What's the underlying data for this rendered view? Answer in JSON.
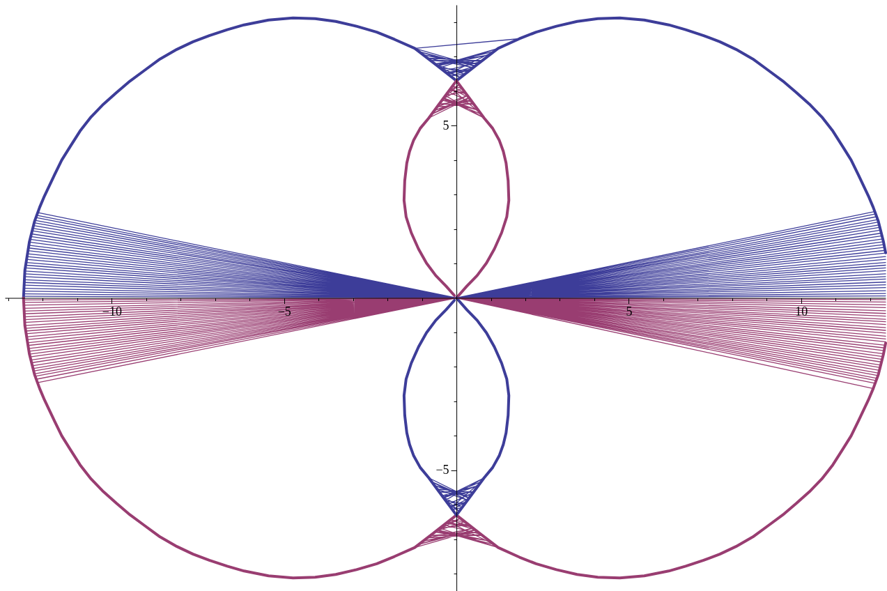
{
  "chart_data": {
    "type": "line",
    "xlim": [
      -13.1,
      12.45
    ],
    "ylim": [
      -8.5,
      8.5
    ],
    "xticks": [
      {
        "value": -13,
        "label": null
      },
      {
        "value": -12,
        "label": null
      },
      {
        "value": -11,
        "label": null
      },
      {
        "value": -10,
        "label": "−10"
      },
      {
        "value": -9,
        "label": null
      },
      {
        "value": -8,
        "label": null
      },
      {
        "value": -7,
        "label": null
      },
      {
        "value": -6,
        "label": null
      },
      {
        "value": -5,
        "label": "−5"
      },
      {
        "value": -4,
        "label": null
      },
      {
        "value": -3,
        "label": null
      },
      {
        "value": -2,
        "label": null
      },
      {
        "value": -1,
        "label": null
      },
      {
        "value": 1,
        "label": null
      },
      {
        "value": 2,
        "label": null
      },
      {
        "value": 3,
        "label": null
      },
      {
        "value": 4,
        "label": null
      },
      5,
      {
        "value": 6,
        "label": null
      },
      {
        "value": 7,
        "label": null
      },
      {
        "value": 8,
        "label": null
      },
      {
        "value": 9,
        "label": null
      },
      10,
      {
        "value": 11,
        "label": null
      },
      {
        "value": 12,
        "label": null
      }
    ],
    "yticks": [
      {
        "value": -8,
        "label": null
      },
      {
        "value": -7,
        "label": null
      },
      {
        "value": -6,
        "label": null
      },
      {
        "value": -5,
        "label": "−5"
      },
      {
        "value": -4,
        "label": null
      },
      {
        "value": -3,
        "label": null
      },
      {
        "value": -2,
        "label": null
      },
      {
        "value": -1,
        "label": null
      },
      {
        "value": 1,
        "label": null
      },
      {
        "value": 2,
        "label": null
      },
      {
        "value": 3,
        "label": null
      },
      {
        "value": 4,
        "label": null
      },
      5,
      {
        "value": 6,
        "label": null
      },
      {
        "value": 7,
        "label": null
      },
      {
        "value": 8,
        "label": null
      }
    ],
    "series": [
      {
        "color": "#3d3d99",
        "x": [
          -12.56,
          -12.52,
          -12.39,
          -12.24,
          -12.09,
          -11.95,
          -11.66,
          -11.45,
          -11.2,
          -10.92,
          -10.6,
          -10.24,
          -9.86,
          -9.47,
          -9.05,
          -8.6,
          -8.11,
          -7.64,
          -7.17,
          -6.65,
          -6.16,
          -5.45,
          -4.74,
          -4.1,
          -3.5,
          -2.9,
          -2.31,
          -1.8,
          -1.21,
          -0.6,
          0,
          0.6,
          1.21,
          1.83,
          2.31,
          2.9,
          3.5,
          4.1,
          4.74,
          5.45,
          6.16,
          6.65,
          7.17,
          7.64,
          8.11,
          8.6,
          9.05,
          9.47,
          9.86,
          10.24,
          10.6,
          10.92,
          11.2,
          11.45,
          11.66,
          11.95,
          12.09,
          12.24,
          12.39,
          12.45
        ],
        "values": [
          0,
          0.8,
          1.62,
          2.22,
          2.63,
          2.96,
          3.57,
          4.0,
          4.4,
          4.84,
          5.25,
          5.62,
          5.96,
          6.29,
          6.6,
          6.93,
          7.21,
          7.43,
          7.61,
          7.78,
          7.92,
          8.06,
          8.12,
          8.1,
          8.02,
          7.88,
          7.71,
          7.5,
          7.24,
          6.77,
          6.3,
          6.77,
          7.24,
          7.52,
          7.71,
          7.88,
          8.02,
          8.1,
          8.12,
          8.06,
          7.92,
          7.78,
          7.61,
          7.43,
          7.21,
          6.93,
          6.6,
          6.29,
          5.96,
          5.62,
          5.25,
          4.84,
          4.4,
          4.0,
          3.57,
          2.96,
          2.63,
          2.22,
          1.62,
          1.31
        ]
      },
      {
        "color": "#993d71",
        "x": [
          -12.56,
          -12.52,
          -12.39,
          -12.24,
          -12.09,
          -11.95,
          -11.66,
          -11.45,
          -11.2,
          -10.92,
          -10.6,
          -10.24,
          -9.86,
          -9.47,
          -9.05,
          -8.6,
          -8.11,
          -7.64,
          -7.17,
          -6.65,
          -6.16,
          -5.45,
          -4.74,
          -4.1,
          -3.5,
          -2.9,
          -2.31,
          -1.8,
          -1.21,
          -0.6,
          0,
          0.6,
          1.21,
          1.83,
          2.31,
          2.9,
          3.5,
          4.1,
          4.74,
          5.45,
          6.16,
          6.65,
          7.17,
          7.64,
          8.11,
          8.6,
          9.05,
          9.47,
          9.86,
          10.24,
          10.6,
          10.92,
          11.2,
          11.45,
          11.66,
          11.95,
          12.09,
          12.24,
          12.39,
          12.45
        ],
        "values": [
          0,
          -0.8,
          -1.62,
          -2.22,
          -2.63,
          -2.96,
          -3.57,
          -4.0,
          -4.4,
          -4.84,
          -5.25,
          -5.62,
          -5.96,
          -6.29,
          -6.6,
          -6.93,
          -7.21,
          -7.43,
          -7.61,
          -7.78,
          -7.92,
          -8.06,
          -8.12,
          -8.1,
          -8.02,
          -7.88,
          -7.71,
          -7.5,
          -7.24,
          -6.77,
          -6.3,
          -6.77,
          -7.24,
          -7.52,
          -7.71,
          -7.88,
          -8.02,
          -8.1,
          -8.12,
          -8.06,
          -7.92,
          -7.78,
          -7.61,
          -7.43,
          -7.21,
          -6.93,
          -6.6,
          -6.29,
          -5.96,
          -5.62,
          -5.25,
          -4.84,
          -4.4,
          -4.0,
          -3.57,
          -2.96,
          -2.63,
          -2.22,
          -1.62,
          -1.31
        ]
      },
      {
        "color": "#3d3d99",
        "x": [
          1.83,
          -1.21,
          0.56,
          -0.97,
          0.63,
          -0.76,
          0.76,
          -0.63,
          0.97,
          -0.56,
          1.21,
          -0.48,
          0.36,
          -0.3,
          0.42,
          -0.18,
          0.24,
          -0.61,
          0.12,
          -0.36,
          0.73,
          -0.85,
          0.48,
          -1.09,
          0.54,
          -0.24,
          1.09,
          -0.58
        ],
        "values": [
          7.52,
          7.24,
          6.73,
          7.05,
          6.79,
          6.89,
          6.89,
          6.79,
          7.05,
          6.73,
          7.24,
          6.68,
          6.58,
          6.54,
          6.63,
          6.44,
          6.49,
          6.77,
          6.39,
          6.58,
          6.86,
          6.96,
          6.68,
          7.15,
          6.72,
          6.49,
          7.15,
          6.75
        ]
      },
      {
        "color": "#993d71",
        "x": [
          -1.21,
          0.56,
          -0.97,
          0.63,
          -0.76,
          0.76,
          -0.63,
          0.97,
          -0.56,
          1.21,
          -0.48,
          0.36,
          -0.3,
          0.42,
          -0.18,
          0.24,
          -0.61,
          0.12,
          -0.36,
          0.73,
          -0.85,
          0.48,
          -1.09,
          0.54,
          -0.24,
          1.09,
          -0.58
        ],
        "values": [
          -7.24,
          -6.73,
          -7.05,
          -6.79,
          -6.89,
          -6.89,
          -6.79,
          -7.05,
          -6.73,
          -7.24,
          -6.68,
          -6.58,
          -6.54,
          -6.63,
          -6.44,
          -6.49,
          -6.77,
          -6.39,
          -6.58,
          -6.86,
          -6.96,
          -6.68,
          -7.15,
          -6.72,
          -6.49,
          -7.15,
          -6.75
        ]
      },
      {
        "color": "#993d71",
        "x": [
          -0.8,
          0.37,
          -0.64,
          0.42,
          -0.5,
          0.5,
          -0.42,
          0.64,
          -0.37,
          0.8,
          -0.32,
          0.24,
          -0.2,
          0.28,
          -0.12,
          0.16,
          -0.4,
          0.08,
          -0.24,
          0.48,
          -0.56,
          0.32,
          -0.72,
          0.36,
          -0.16,
          0.72,
          -0.38
        ],
        "values": [
          5.22,
          5.8,
          5.44,
          5.74,
          5.62,
          5.62,
          5.74,
          5.44,
          5.8,
          5.22,
          5.87,
          5.98,
          6.03,
          5.92,
          6.14,
          6.08,
          5.76,
          6.19,
          5.98,
          5.65,
          5.54,
          5.87,
          5.33,
          5.81,
          6.08,
          5.33,
          5.78
        ]
      },
      {
        "color": "#3d3d99",
        "x": [
          -0.8,
          0.37,
          -0.64,
          0.42,
          -0.5,
          0.5,
          -0.42,
          0.64,
          -0.37,
          0.8,
          -0.32,
          0.24,
          -0.2,
          0.28,
          -0.12,
          0.16,
          -0.4,
          0.08,
          -0.24,
          0.48,
          -0.56,
          0.32,
          -0.72,
          0.36,
          -0.16,
          0.72,
          -0.38
        ],
        "values": [
          -5.22,
          -5.8,
          -5.44,
          -5.74,
          -5.62,
          -5.62,
          -5.74,
          -5.44,
          -5.8,
          -5.22,
          -5.87,
          -5.98,
          -6.03,
          -5.92,
          -6.14,
          -6.08,
          -5.76,
          -6.19,
          -5.98,
          -5.65,
          -5.54,
          -5.87,
          -5.33,
          -5.81,
          -6.08,
          -5.33,
          -5.78
        ]
      },
      {
        "color": "#993d71",
        "x": [
          0,
          0.3,
          0.6,
          0.87,
          1.1,
          1.31,
          1.46,
          1.52,
          1.5,
          1.44,
          1.36,
          1.24,
          1.05,
          0.8,
          0.4,
          0,
          -0.4,
          -0.8,
          -1.05,
          -1.24,
          -1.36,
          -1.44,
          -1.5,
          -1.52,
          -1.46,
          -1.31,
          -1.1,
          -0.87,
          -0.6,
          -0.3,
          -0.06
        ],
        "values": [
          0,
          0.34,
          0.65,
          1.01,
          1.42,
          1.89,
          2.35,
          2.83,
          3.4,
          3.91,
          4.25,
          4.58,
          4.92,
          5.22,
          5.76,
          6.3,
          5.76,
          5.22,
          4.92,
          4.58,
          4.25,
          3.91,
          3.4,
          2.83,
          2.35,
          1.89,
          1.42,
          1.01,
          0.65,
          0.34,
          0.07
        ]
      },
      {
        "color": "#3d3d99",
        "x": [
          0,
          0.3,
          0.6,
          0.87,
          1.1,
          1.31,
          1.46,
          1.52,
          1.5,
          1.44,
          1.36,
          1.24,
          1.05,
          0.8,
          0.4,
          0,
          -0.4,
          -0.8,
          -1.05,
          -1.24,
          -1.36,
          -1.44,
          -1.5,
          -1.52,
          -1.46,
          -1.31,
          -1.1,
          -0.87,
          -0.6,
          -0.3,
          -0.06
        ],
        "values": [
          0,
          -0.34,
          -0.65,
          -1.01,
          -1.42,
          -1.89,
          -2.35,
          -2.83,
          -3.4,
          -3.91,
          -4.25,
          -4.58,
          -4.92,
          -5.22,
          -5.76,
          -6.3,
          -5.76,
          -5.22,
          -4.92,
          -4.58,
          -4.25,
          -3.91,
          -3.4,
          -2.83,
          -2.35,
          -1.89,
          -1.42,
          -1.01,
          -0.65,
          -0.34,
          -0.07
        ]
      },
      {
        "color": "#3d3d99",
        "x": [
          0,
          -12.16,
          0,
          -12.18,
          0,
          -12.2,
          0,
          -12.23,
          0,
          -12.25,
          0,
          -12.27,
          0,
          -12.29,
          0,
          -12.31,
          0,
          -12.34,
          0,
          -12.35,
          0,
          -12.37,
          0,
          -12.39,
          0,
          -12.41,
          0,
          -12.42,
          0,
          -12.44,
          0,
          -12.45,
          0,
          -12.47,
          0,
          -12.48,
          0,
          -12.49,
          0,
          -12.5,
          0,
          -12.51,
          0,
          -12.52,
          0,
          -12.53,
          0,
          -12.54,
          0,
          -12.54,
          0,
          -12.55,
          0,
          -12.55,
          0,
          -12.55,
          0,
          -12.56,
          0,
          -12.56,
          0,
          -12.56,
          0,
          12.15,
          0,
          12.17,
          0,
          12.2,
          0,
          12.22,
          0,
          12.24,
          0,
          12.27,
          0,
          12.29,
          0,
          12.31,
          0,
          12.33,
          0,
          12.35,
          0,
          12.37,
          0,
          12.39,
          0,
          12.41,
          0,
          12.42,
          0,
          12.44,
          0,
          12.45,
          0,
          12.45,
          0,
          12.45,
          0,
          12.45,
          0,
          12.45,
          0,
          12.45,
          0,
          12.45,
          0,
          12.45,
          0,
          12.45,
          0,
          12.45,
          0,
          12.45,
          0,
          12.45,
          0,
          12.45,
          0,
          12.45,
          0,
          12.45,
          0,
          12.45
        ],
        "values": [
          0,
          2.48,
          0,
          2.4,
          0,
          2.33,
          0,
          2.25,
          0,
          2.18,
          0,
          2.1,
          0,
          2.02,
          0,
          1.95,
          0,
          1.86,
          0,
          1.78,
          0,
          1.7,
          0,
          1.62,
          0,
          1.53,
          0,
          1.45,
          0,
          1.37,
          0,
          1.28,
          0,
          1.2,
          0,
          1.12,
          0,
          1.03,
          0,
          0.95,
          0,
          0.87,
          0,
          0.78,
          0,
          0.7,
          0,
          0.62,
          0,
          0.53,
          0,
          0.45,
          0,
          0.37,
          0,
          0.28,
          0,
          0.2,
          0,
          0.12,
          0,
          0.05,
          0,
          2.51,
          0,
          2.44,
          0,
          2.36,
          0,
          2.27,
          0,
          2.2,
          0,
          2.12,
          0,
          2.05,
          0,
          1.97,
          0,
          1.88,
          0,
          1.8,
          0,
          1.71,
          0,
          1.63,
          0,
          1.55,
          0,
          1.47,
          0,
          1.38,
          0,
          1.3,
          0,
          1.2,
          0,
          1.12,
          0,
          1.03,
          0,
          0.95,
          0,
          0.87,
          0,
          0.79,
          0,
          0.7,
          0,
          0.62,
          0,
          0.55,
          0,
          0.46,
          0,
          0.38,
          0,
          0.3,
          0,
          0.21,
          0,
          0.13,
          0,
          0.06
        ]
      },
      {
        "color": "#993d71",
        "x": [
          0,
          -12.16,
          0,
          -12.2,
          0,
          -12.22,
          0,
          -12.24,
          0,
          -12.27,
          0,
          -12.29,
          0,
          -12.31,
          0,
          -12.33,
          0,
          -12.35,
          0,
          -12.37,
          0,
          -12.39,
          0,
          -12.41,
          0,
          -12.42,
          0,
          -12.44,
          0,
          -12.45,
          0,
          -12.47,
          0,
          -12.48,
          0,
          -12.49,
          0,
          -12.5,
          0,
          -12.51,
          0,
          -12.52,
          0,
          -12.53,
          0,
          -12.53,
          0,
          -12.54,
          0,
          -12.55,
          0,
          -12.55,
          0,
          -12.55,
          0,
          -12.56,
          0,
          -12.56,
          0,
          -12.56,
          0,
          12.1,
          0,
          12.16,
          0,
          12.18,
          0,
          12.2,
          0,
          12.23,
          0,
          12.25,
          0,
          12.27,
          0,
          12.29,
          0,
          12.31,
          0,
          12.34,
          0,
          12.35,
          0,
          12.37,
          0,
          12.39,
          0,
          12.41,
          0,
          12.42,
          0,
          12.44,
          0,
          12.45,
          0,
          12.45,
          0,
          12.45,
          0,
          12.45,
          0,
          12.45,
          0,
          12.45,
          0,
          12.45,
          0,
          12.45,
          0,
          12.45,
          0,
          12.45,
          0,
          12.45,
          0,
          12.45,
          0,
          12.45,
          0,
          12.45,
          0,
          12.45,
          0,
          12.45
        ],
        "values": [
          0,
          -2.46,
          0,
          -2.36,
          0,
          -2.27,
          0,
          -2.2,
          0,
          -2.12,
          0,
          -2.05,
          0,
          -1.97,
          0,
          -1.88,
          0,
          -1.8,
          0,
          -1.71,
          0,
          -1.63,
          0,
          -1.55,
          0,
          -1.47,
          0,
          -1.38,
          0,
          -1.3,
          0,
          -1.21,
          0,
          -1.13,
          0,
          -1.04,
          0,
          -0.96,
          0,
          -0.88,
          0,
          -0.8,
          0,
          -0.71,
          0,
          -0.63,
          0,
          -0.55,
          0,
          -0.46,
          0,
          -0.38,
          0,
          -0.3,
          0,
          -0.21,
          0,
          -0.13,
          0,
          -0.06,
          0,
          -2.63,
          0,
          -2.48,
          0,
          -2.4,
          0,
          -2.33,
          0,
          -2.25,
          0,
          -2.18,
          0,
          -2.1,
          0,
          -2.02,
          0,
          -1.95,
          0,
          -1.86,
          0,
          -1.78,
          0,
          -1.7,
          0,
          -1.62,
          0,
          -1.53,
          0,
          -1.45,
          0,
          -1.37,
          0,
          -1.27,
          0,
          -1.19,
          0,
          -1.11,
          0,
          -1.02,
          0,
          -0.94,
          0,
          -0.86,
          0,
          -0.77,
          0,
          -0.69,
          0,
          -0.62,
          0,
          -0.53,
          0,
          -0.45,
          0,
          -0.37,
          0,
          -0.28,
          0,
          -0.2,
          0,
          -0.12,
          0,
          -0.05
        ]
      }
    ]
  }
}
